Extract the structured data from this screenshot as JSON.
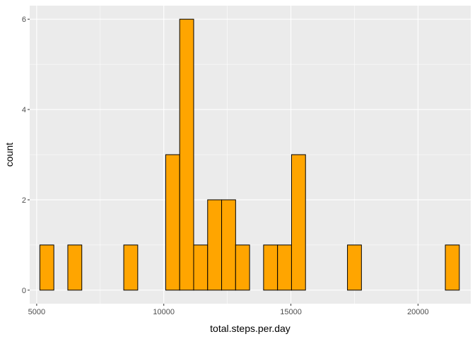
{
  "chart_data": {
    "type": "bar",
    "subtype": "histogram",
    "xlabel": "total.steps.per.day",
    "ylabel": "count",
    "xlim": [
      4725,
      22075
    ],
    "ylim": [
      -0.3,
      6.3
    ],
    "x_ticks": [
      5000,
      10000,
      15000,
      20000
    ],
    "x_tick_labels": [
      "5000",
      "10000",
      "15000",
      "20000"
    ],
    "y_ticks": [
      0,
      2,
      4,
      6
    ],
    "y_tick_labels": [
      "0",
      "2",
      "4",
      "6"
    ],
    "bin_width": 550,
    "bin_start": 5125,
    "counts": [
      1,
      0,
      1,
      0,
      0,
      0,
      1,
      0,
      0,
      3,
      6,
      1,
      2,
      2,
      1,
      0,
      1,
      1,
      3,
      0,
      0,
      0,
      1,
      0,
      0,
      0,
      0,
      0,
      0,
      1
    ],
    "grid": true,
    "legend": "none",
    "colors": {
      "panel": "#ebebeb",
      "grid_major": "#ffffff",
      "bar_fill": "#ffa500",
      "bar_stroke": "#000000"
    }
  }
}
